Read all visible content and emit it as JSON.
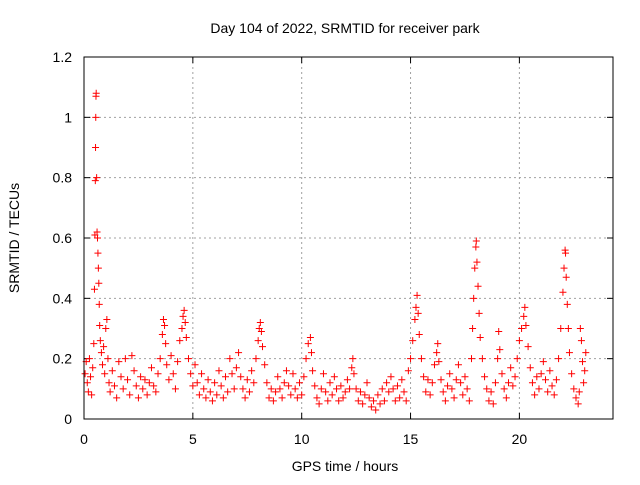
{
  "chart_data": {
    "type": "scatter",
    "title": "Day 104 of 2022, SRMTID for receiver park",
    "xlabel": "GPS time / hours",
    "ylabel": "SRMTID / TECUs",
    "xlim": [
      0,
      24.3
    ],
    "ylim": [
      0,
      1.2
    ],
    "x_ticks": [
      {
        "value": 0,
        "label": "0"
      },
      {
        "value": 5,
        "label": "5"
      },
      {
        "value": 10,
        "label": "10"
      },
      {
        "value": 15,
        "label": "15"
      },
      {
        "value": 20,
        "label": "20"
      }
    ],
    "y_ticks": [
      {
        "value": 0,
        "label": "0"
      },
      {
        "value": 0.2,
        "label": "0.2"
      },
      {
        "value": 0.4,
        "label": "0.4"
      },
      {
        "value": 0.6,
        "label": "0.6"
      },
      {
        "value": 0.8,
        "label": "0.8"
      },
      {
        "value": 1.0,
        "label": "1"
      },
      {
        "value": 1.2,
        "label": "1.2"
      }
    ],
    "grid": true,
    "marker": "+",
    "color": "#ff0000",
    "series": [
      {
        "name": "SRMTID",
        "points": [
          [
            0.05,
            0.15
          ],
          [
            0.1,
            0.19
          ],
          [
            0.15,
            0.12
          ],
          [
            0.2,
            0.09
          ],
          [
            0.25,
            0.2
          ],
          [
            0.3,
            0.14
          ],
          [
            0.35,
            0.08
          ],
          [
            0.4,
            0.17
          ],
          [
            0.45,
            0.25
          ],
          [
            0.48,
            0.43
          ],
          [
            0.5,
            0.61
          ],
          [
            0.52,
            0.79
          ],
          [
            0.53,
            0.9
          ],
          [
            0.54,
            1.0
          ],
          [
            0.55,
            1.07
          ],
          [
            0.56,
            1.08
          ],
          [
            0.58,
            0.8
          ],
          [
            0.6,
            0.62
          ],
          [
            0.62,
            0.6
          ],
          [
            0.64,
            0.55
          ],
          [
            0.66,
            0.5
          ],
          [
            0.68,
            0.45
          ],
          [
            0.7,
            0.38
          ],
          [
            0.72,
            0.31
          ],
          [
            0.75,
            0.26
          ],
          [
            0.8,
            0.22
          ],
          [
            0.85,
            0.18
          ],
          [
            0.9,
            0.24
          ],
          [
            0.95,
            0.15
          ],
          [
            1.0,
            0.3
          ],
          [
            1.05,
            0.33
          ],
          [
            1.1,
            0.2
          ],
          [
            1.15,
            0.12
          ],
          [
            1.2,
            0.09
          ],
          [
            1.3,
            0.16
          ],
          [
            1.4,
            0.11
          ],
          [
            1.5,
            0.07
          ],
          [
            1.6,
            0.19
          ],
          [
            1.7,
            0.14
          ],
          [
            1.8,
            0.1
          ],
          [
            1.9,
            0.2
          ],
          [
            2.0,
            0.13
          ],
          [
            2.1,
            0.08
          ],
          [
            2.2,
            0.21
          ],
          [
            2.3,
            0.16
          ],
          [
            2.4,
            0.11
          ],
          [
            2.5,
            0.07
          ],
          [
            2.6,
            0.14
          ],
          [
            2.7,
            0.1
          ],
          [
            2.8,
            0.13
          ],
          [
            2.9,
            0.08
          ],
          [
            3.0,
            0.12
          ],
          [
            3.1,
            0.17
          ],
          [
            3.2,
            0.11
          ],
          [
            3.3,
            0.09
          ],
          [
            3.4,
            0.15
          ],
          [
            3.5,
            0.2
          ],
          [
            3.6,
            0.28
          ],
          [
            3.65,
            0.33
          ],
          [
            3.7,
            0.31
          ],
          [
            3.75,
            0.25
          ],
          [
            3.8,
            0.18
          ],
          [
            3.9,
            0.13
          ],
          [
            4.0,
            0.21
          ],
          [
            4.1,
            0.15
          ],
          [
            4.2,
            0.1
          ],
          [
            4.3,
            0.19
          ],
          [
            4.4,
            0.26
          ],
          [
            4.5,
            0.3
          ],
          [
            4.55,
            0.34
          ],
          [
            4.6,
            0.36
          ],
          [
            4.65,
            0.32
          ],
          [
            4.7,
            0.27
          ],
          [
            4.8,
            0.2
          ],
          [
            4.9,
            0.15
          ],
          [
            5.0,
            0.11
          ],
          [
            5.1,
            0.18
          ],
          [
            5.2,
            0.12
          ],
          [
            5.3,
            0.08
          ],
          [
            5.4,
            0.15
          ],
          [
            5.5,
            0.1
          ],
          [
            5.6,
            0.07
          ],
          [
            5.7,
            0.13
          ],
          [
            5.8,
            0.09
          ],
          [
            5.9,
            0.06
          ],
          [
            6.0,
            0.12
          ],
          [
            6.1,
            0.08
          ],
          [
            6.2,
            0.16
          ],
          [
            6.3,
            0.11
          ],
          [
            6.4,
            0.07
          ],
          [
            6.5,
            0.14
          ],
          [
            6.6,
            0.09
          ],
          [
            6.7,
            0.2
          ],
          [
            6.8,
            0.15
          ],
          [
            6.9,
            0.1
          ],
          [
            7.0,
            0.17
          ],
          [
            7.1,
            0.22
          ],
          [
            7.2,
            0.14
          ],
          [
            7.3,
            0.1
          ],
          [
            7.4,
            0.07
          ],
          [
            7.5,
            0.13
          ],
          [
            7.6,
            0.09
          ],
          [
            7.7,
            0.16
          ],
          [
            7.8,
            0.12
          ],
          [
            7.9,
            0.2
          ],
          [
            8.0,
            0.26
          ],
          [
            8.05,
            0.3
          ],
          [
            8.1,
            0.32
          ],
          [
            8.15,
            0.29
          ],
          [
            8.2,
            0.24
          ],
          [
            8.3,
            0.18
          ],
          [
            8.4,
            0.12
          ],
          [
            8.5,
            0.07
          ],
          [
            8.6,
            0.1
          ],
          [
            8.7,
            0.06
          ],
          [
            8.8,
            0.09
          ],
          [
            8.9,
            0.14
          ],
          [
            9.0,
            0.1
          ],
          [
            9.1,
            0.07
          ],
          [
            9.2,
            0.12
          ],
          [
            9.3,
            0.16
          ],
          [
            9.4,
            0.11
          ],
          [
            9.5,
            0.08
          ],
          [
            9.6,
            0.15
          ],
          [
            9.7,
            0.1
          ],
          [
            9.8,
            0.07
          ],
          [
            9.9,
            0.12
          ],
          [
            10.0,
            0.08
          ],
          [
            10.1,
            0.14
          ],
          [
            10.2,
            0.2
          ],
          [
            10.3,
            0.25
          ],
          [
            10.4,
            0.27
          ],
          [
            10.45,
            0.22
          ],
          [
            10.5,
            0.16
          ],
          [
            10.6,
            0.11
          ],
          [
            10.7,
            0.07
          ],
          [
            10.8,
            0.05
          ],
          [
            10.9,
            0.1
          ],
          [
            11.0,
            0.15
          ],
          [
            11.1,
            0.09
          ],
          [
            11.2,
            0.06
          ],
          [
            11.3,
            0.12
          ],
          [
            11.4,
            0.08
          ],
          [
            11.5,
            0.14
          ],
          [
            11.6,
            0.1
          ],
          [
            11.7,
            0.06
          ],
          [
            11.8,
            0.11
          ],
          [
            11.9,
            0.07
          ],
          [
            12.0,
            0.09
          ],
          [
            12.1,
            0.13
          ],
          [
            12.2,
            0.1
          ],
          [
            12.3,
            0.17
          ],
          [
            12.35,
            0.2
          ],
          [
            12.4,
            0.15
          ],
          [
            12.5,
            0.1
          ],
          [
            12.6,
            0.06
          ],
          [
            12.7,
            0.09
          ],
          [
            12.8,
            0.05
          ],
          [
            12.9,
            0.08
          ],
          [
            13.0,
            0.12
          ],
          [
            13.1,
            0.07
          ],
          [
            13.2,
            0.04
          ],
          [
            13.3,
            0.06
          ],
          [
            13.4,
            0.03
          ],
          [
            13.5,
            0.08
          ],
          [
            13.6,
            0.05
          ],
          [
            13.7,
            0.1
          ],
          [
            13.8,
            0.06
          ],
          [
            13.9,
            0.12
          ],
          [
            14.0,
            0.09
          ],
          [
            14.1,
            0.14
          ],
          [
            14.2,
            0.1
          ],
          [
            14.3,
            0.06
          ],
          [
            14.4,
            0.11
          ],
          [
            14.5,
            0.07
          ],
          [
            14.6,
            0.13
          ],
          [
            14.7,
            0.09
          ],
          [
            14.8,
            0.06
          ],
          [
            14.9,
            0.16
          ],
          [
            15.0,
            0.2
          ],
          [
            15.1,
            0.26
          ],
          [
            15.2,
            0.33
          ],
          [
            15.25,
            0.37
          ],
          [
            15.3,
            0.41
          ],
          [
            15.35,
            0.35
          ],
          [
            15.4,
            0.28
          ],
          [
            15.5,
            0.2
          ],
          [
            15.6,
            0.14
          ],
          [
            15.7,
            0.09
          ],
          [
            15.8,
            0.13
          ],
          [
            15.9,
            0.08
          ],
          [
            16.0,
            0.12
          ],
          [
            16.1,
            0.18
          ],
          [
            16.2,
            0.22
          ],
          [
            16.25,
            0.25
          ],
          [
            16.3,
            0.19
          ],
          [
            16.4,
            0.13
          ],
          [
            16.5,
            0.09
          ],
          [
            16.6,
            0.06
          ],
          [
            16.7,
            0.11
          ],
          [
            16.8,
            0.15
          ],
          [
            16.9,
            0.1
          ],
          [
            17.0,
            0.07
          ],
          [
            17.1,
            0.13
          ],
          [
            17.2,
            0.18
          ],
          [
            17.3,
            0.12
          ],
          [
            17.4,
            0.08
          ],
          [
            17.5,
            0.14
          ],
          [
            17.6,
            0.1
          ],
          [
            17.7,
            0.06
          ],
          [
            17.8,
            0.2
          ],
          [
            17.85,
            0.3
          ],
          [
            17.9,
            0.4
          ],
          [
            17.95,
            0.5
          ],
          [
            18.0,
            0.57
          ],
          [
            18.02,
            0.59
          ],
          [
            18.05,
            0.52
          ],
          [
            18.1,
            0.44
          ],
          [
            18.15,
            0.35
          ],
          [
            18.2,
            0.27
          ],
          [
            18.3,
            0.2
          ],
          [
            18.4,
            0.14
          ],
          [
            18.5,
            0.1
          ],
          [
            18.6,
            0.06
          ],
          [
            18.7,
            0.09
          ],
          [
            18.8,
            0.05
          ],
          [
            18.9,
            0.12
          ],
          [
            19.0,
            0.2
          ],
          [
            19.05,
            0.29
          ],
          [
            19.1,
            0.23
          ],
          [
            19.2,
            0.15
          ],
          [
            19.3,
            0.1
          ],
          [
            19.4,
            0.07
          ],
          [
            19.5,
            0.12
          ],
          [
            19.6,
            0.17
          ],
          [
            19.7,
            0.11
          ],
          [
            19.8,
            0.14
          ],
          [
            19.9,
            0.2
          ],
          [
            20.0,
            0.26
          ],
          [
            20.1,
            0.3
          ],
          [
            20.2,
            0.34
          ],
          [
            20.25,
            0.37
          ],
          [
            20.3,
            0.31
          ],
          [
            20.4,
            0.24
          ],
          [
            20.5,
            0.17
          ],
          [
            20.6,
            0.12
          ],
          [
            20.7,
            0.08
          ],
          [
            20.8,
            0.14
          ],
          [
            20.9,
            0.1
          ],
          [
            21.0,
            0.15
          ],
          [
            21.1,
            0.19
          ],
          [
            21.2,
            0.13
          ],
          [
            21.3,
            0.09
          ],
          [
            21.4,
            0.16
          ],
          [
            21.5,
            0.11
          ],
          [
            21.6,
            0.08
          ],
          [
            21.7,
            0.13
          ],
          [
            21.8,
            0.2
          ],
          [
            21.9,
            0.3
          ],
          [
            22.0,
            0.42
          ],
          [
            22.05,
            0.5
          ],
          [
            22.1,
            0.56
          ],
          [
            22.12,
            0.55
          ],
          [
            22.15,
            0.47
          ],
          [
            22.2,
            0.38
          ],
          [
            22.25,
            0.3
          ],
          [
            22.3,
            0.22
          ],
          [
            22.4,
            0.15
          ],
          [
            22.5,
            0.1
          ],
          [
            22.6,
            0.07
          ],
          [
            22.7,
            0.05
          ],
          [
            22.75,
            0.09
          ],
          [
            22.8,
            0.3
          ],
          [
            22.85,
            0.26
          ],
          [
            22.9,
            0.19
          ],
          [
            22.95,
            0.12
          ],
          [
            23.0,
            0.16
          ],
          [
            23.05,
            0.22
          ]
        ]
      }
    ]
  }
}
